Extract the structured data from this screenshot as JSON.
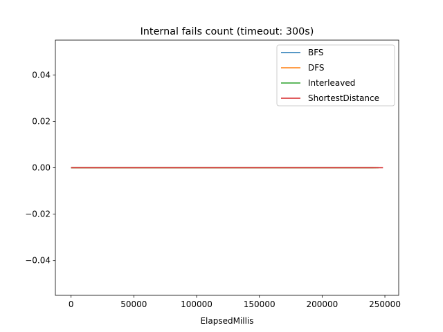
{
  "chart_data": {
    "type": "line",
    "title": "Internal fails count (timeout: 300s)",
    "xlabel": "ElapsedMillis",
    "ylabel": "",
    "xlim": [
      -12500,
      261000
    ],
    "ylim": [
      -0.055,
      0.055
    ],
    "x_ticks": [
      0,
      50000,
      100000,
      150000,
      200000,
      250000
    ],
    "x_tick_labels": [
      "0",
      "50000",
      "100000",
      "150000",
      "200000",
      "250000"
    ],
    "y_ticks": [
      -0.04,
      -0.02,
      0.0,
      0.02,
      0.04
    ],
    "y_tick_labels": [
      "−0.04",
      "−0.02",
      "0.00",
      "0.02",
      "0.04"
    ],
    "grid": false,
    "legend_position": "top-right",
    "series": [
      {
        "name": "BFS",
        "color": "#1f77b4",
        "x": [
          0,
          241000
        ],
        "y": [
          0,
          0
        ]
      },
      {
        "name": "DFS",
        "color": "#ff7f0e",
        "x": [
          0,
          243000
        ],
        "y": [
          0,
          0
        ]
      },
      {
        "name": "Interleaved",
        "color": "#2ca02c",
        "x": [
          0,
          245000
        ],
        "y": [
          0,
          0
        ]
      },
      {
        "name": "ShortestDistance",
        "color": "#d62728",
        "x": [
          0,
          248500
        ],
        "y": [
          0,
          0
        ]
      }
    ]
  }
}
